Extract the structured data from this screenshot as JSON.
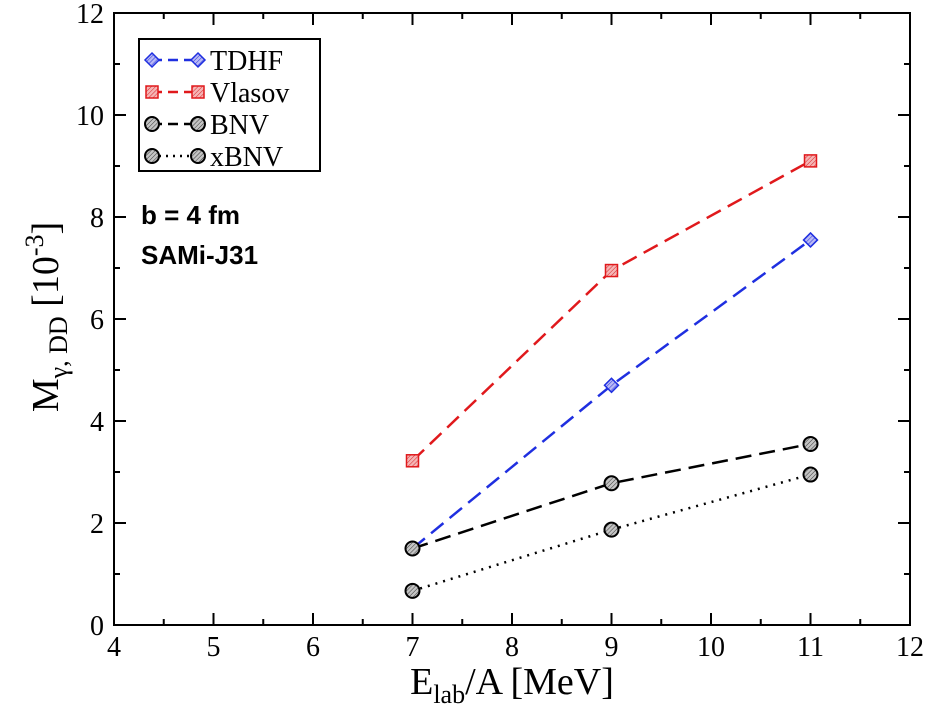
{
  "chart_data": {
    "type": "line",
    "xlabel_main": "E",
    "xlabel_sub": "lab",
    "xlabel_rest": "/A [MeV]",
    "ylabel_main": "M",
    "ylabel_sub": "γ, DD",
    "ylabel_unit_open": " [10",
    "ylabel_unit_exp": "-3",
    "ylabel_unit_close": "]",
    "xlim": [
      4,
      12
    ],
    "ylim": [
      0,
      12
    ],
    "xticks": [
      4,
      5,
      6,
      7,
      8,
      9,
      10,
      11,
      12
    ],
    "yticks": [
      0,
      2,
      4,
      6,
      8,
      10,
      12
    ],
    "grid": false,
    "legend_position": "top-left",
    "annotations": [
      "b = 4 fm",
      "SAMi-J31"
    ],
    "series": [
      {
        "name": "TDHF",
        "x": [
          7,
          9,
          11
        ],
        "values": [
          1.5,
          4.7,
          7.55
        ],
        "color": "#1f2fe0",
        "line": "dashed",
        "marker": "diamond",
        "marker_fill": "#8f8ff0"
      },
      {
        "name": "Vlasov",
        "x": [
          7,
          9,
          11
        ],
        "values": [
          3.22,
          6.95,
          9.1
        ],
        "color": "#e0191c",
        "line": "dashed",
        "marker": "square",
        "marker_fill": "#f08080"
      },
      {
        "name": "BNV",
        "x": [
          7,
          9,
          11
        ],
        "values": [
          1.5,
          2.78,
          3.55
        ],
        "color": "#000000",
        "line": "dashed",
        "marker": "circle",
        "marker_fill": "#8a8a8a"
      },
      {
        "name": "xBNV",
        "x": [
          7,
          9,
          11
        ],
        "values": [
          0.67,
          1.87,
          2.95
        ],
        "color": "#000000",
        "line": "dotted",
        "marker": "circle",
        "marker_fill": "#8a8a8a"
      }
    ]
  }
}
